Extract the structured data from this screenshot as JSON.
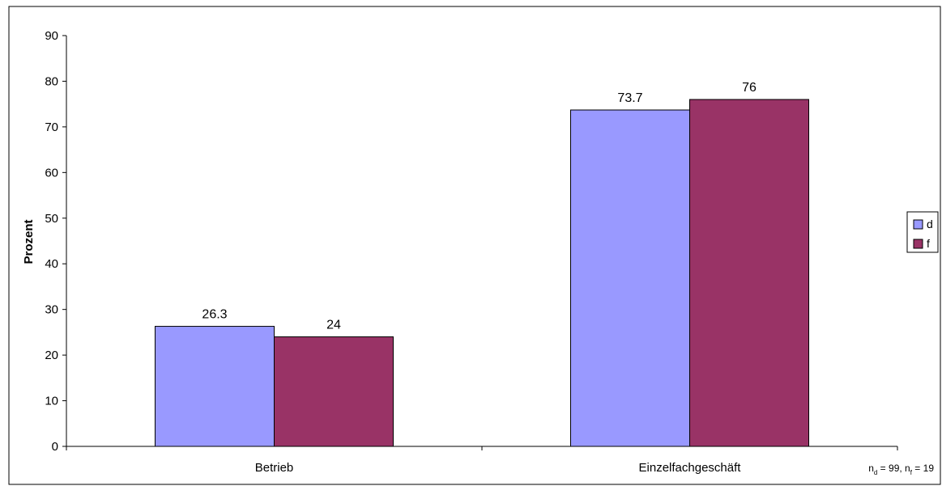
{
  "chart_data": {
    "type": "bar",
    "title": "",
    "xlabel": "",
    "ylabel": "Prozent",
    "ylim": [
      0,
      90
    ],
    "yticks": [
      0,
      10,
      20,
      30,
      40,
      50,
      60,
      70,
      80,
      90
    ],
    "categories": [
      "Betrieb",
      "Einzelfachgeschäft"
    ],
    "series": [
      {
        "name": "d",
        "values": [
          26.3,
          73.7
        ],
        "labels": [
          "26.3",
          "73.7"
        ],
        "color": "#9999ff"
      },
      {
        "name": "f",
        "values": [
          24,
          76
        ],
        "labels": [
          "24",
          "76"
        ],
        "color": "#993366"
      }
    ],
    "grid": false,
    "legend": "right"
  },
  "footnote": {
    "n_d_base": "n",
    "n_d_sub": "d",
    "n_d_value": " = 99, ",
    "n_f_base": "n",
    "n_f_sub": "f",
    "n_f_value": " = 19"
  }
}
